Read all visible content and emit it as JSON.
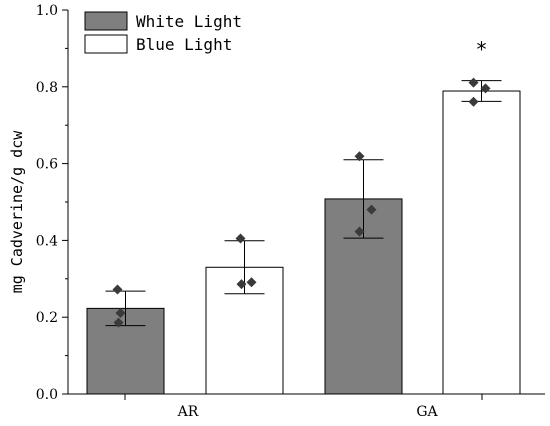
{
  "chart_data": {
    "type": "bar",
    "categories": [
      "AR",
      "GA"
    ],
    "ylabel": "mg Cadverine/g dcw",
    "xlabel": "",
    "ylim": [
      0.0,
      1.0
    ],
    "yticks": [
      "0.0",
      "0.2",
      "0.4",
      "0.6",
      "0.8",
      "1.0"
    ],
    "legend_position": "top-left",
    "grid": false,
    "series": [
      {
        "name": "White Light",
        "color": "#7f7f7f",
        "values": [
          0.223,
          0.508
        ],
        "error": [
          0.045,
          0.102
        ],
        "points": [
          [
            0.272,
            0.211,
            0.186
          ],
          [
            0.619,
            0.48,
            0.423
          ]
        ]
      },
      {
        "name": "Blue Light",
        "color": "#ffffff",
        "values": [
          0.33,
          0.789
        ],
        "error": [
          0.069,
          0.027
        ],
        "points": [
          [
            0.405,
            0.291,
            0.286
          ],
          [
            0.811,
            0.796,
            0.761
          ]
        ]
      }
    ],
    "annotations": [
      {
        "text": "*",
        "category": "GA",
        "series": "Blue Light"
      }
    ]
  }
}
